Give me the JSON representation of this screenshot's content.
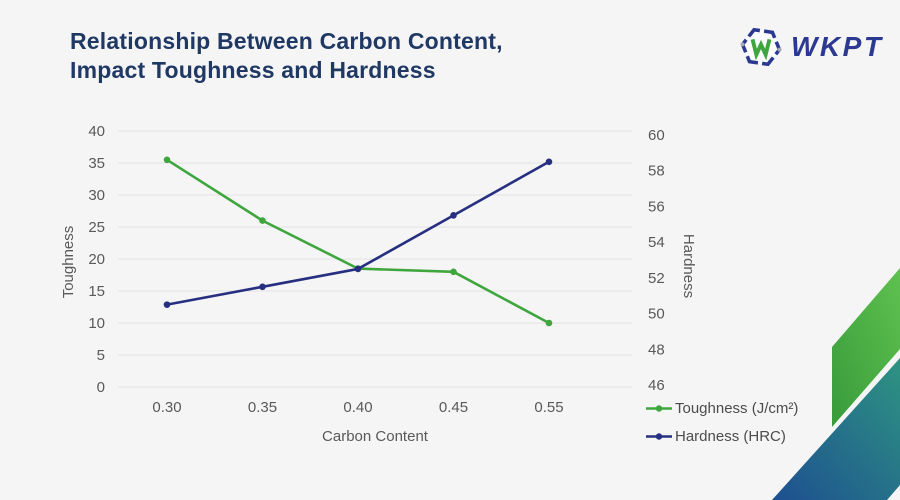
{
  "header": {
    "title_line1": "Relationship Between Carbon Content,",
    "title_line2": "Impact Toughness and Hardness",
    "logo_text": "WKPT"
  },
  "chart_data": {
    "type": "line",
    "categories": [
      "0.30",
      "0.35",
      "0.40",
      "0.45",
      "0.55"
    ],
    "xlabel": "Carbon Content",
    "y_left": {
      "label": "Toughness",
      "min": 0,
      "max": 40,
      "step": 5
    },
    "y_right": {
      "label": "Hardness",
      "min": 46,
      "max": 60,
      "step": 2
    },
    "series": [
      {
        "name": "Toughness (J/cm²)",
        "axis": "left",
        "color": "#3fa63e",
        "marker": "circle",
        "values": [
          35.5,
          26,
          18.5,
          18,
          10
        ]
      },
      {
        "name": "Hardness (HRC)",
        "axis": "right",
        "color": "#272f80",
        "marker": "circle",
        "values": [
          50.5,
          51.5,
          52.5,
          55.5,
          58.5
        ]
      }
    ],
    "grid": true,
    "legend_position": "bottom-right"
  },
  "colors": {
    "background": "#f5f5f6",
    "title": "#1f3864",
    "logo_blue": "#2b3990",
    "logo_green": "#3fa63e",
    "grid": "#e2e2e4",
    "tick_text": "#595959",
    "deco_green_top": "#5fc14f",
    "deco_green_bottom": "#379b3b",
    "deco_blue_top": "#2e9482",
    "deco_blue_bottom": "#1d4f90"
  }
}
